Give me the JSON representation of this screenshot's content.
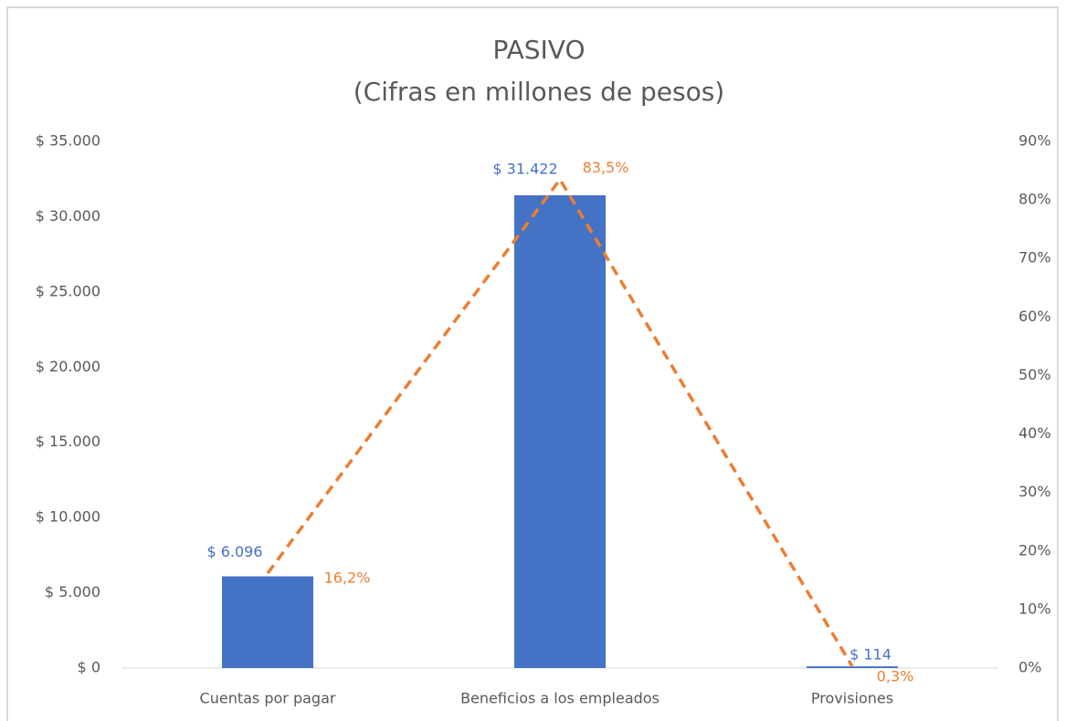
{
  "chart_data": {
    "type": "bar_line",
    "title": "PASIVO",
    "subtitle": "(Cifras en millones de pesos)",
    "categories": [
      "Cuentas por pagar",
      "Beneficios a los empleados",
      "Provisiones"
    ],
    "series": [
      {
        "type": "bar",
        "color": "#4472c4",
        "values": [
          6096,
          31422,
          114
        ],
        "value_labels": [
          "$ 6.096",
          "$ 31.422",
          "$ 114"
        ]
      },
      {
        "type": "line",
        "axis": "y2",
        "color": "#ed7d31",
        "dashed": true,
        "values": [
          16.2,
          83.5,
          0.3
        ],
        "value_labels": [
          "16,2%",
          "83,5%",
          "0,3%"
        ]
      }
    ],
    "ylim": [
      0,
      35000
    ],
    "yticks": [
      {
        "value": 0,
        "label": "$ 0"
      },
      {
        "value": 5000,
        "label": "$ 5.000"
      },
      {
        "value": 10000,
        "label": "$ 10.000"
      },
      {
        "value": 15000,
        "label": "$ 15.000"
      },
      {
        "value": 20000,
        "label": "$ 20.000"
      },
      {
        "value": 25000,
        "label": "$ 25.000"
      },
      {
        "value": 30000,
        "label": "$ 30.000"
      },
      {
        "value": 35000,
        "label": "$ 35.000"
      }
    ],
    "y2lim": [
      0,
      90
    ],
    "y2ticks": [
      {
        "value": 0,
        "label": "0%"
      },
      {
        "value": 10,
        "label": "10%"
      },
      {
        "value": 20,
        "label": "20%"
      },
      {
        "value": 30,
        "label": "30%"
      },
      {
        "value": 40,
        "label": "40%"
      },
      {
        "value": 50,
        "label": "50%"
      },
      {
        "value": 60,
        "label": "60%"
      },
      {
        "value": 70,
        "label": "70%"
      },
      {
        "value": 80,
        "label": "80%"
      },
      {
        "value": 90,
        "label": "90%"
      }
    ],
    "grid": false
  }
}
